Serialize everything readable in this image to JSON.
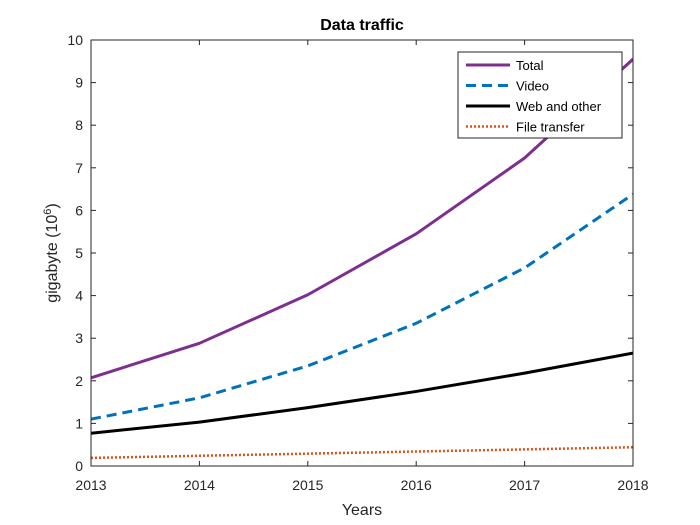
{
  "chart_data": {
    "type": "line",
    "title": "Data traffic",
    "xlabel": "Years",
    "ylabel_base": "gigabyte (10",
    "ylabel_exp": "6",
    "ylabel_close": ")",
    "xlim": [
      2013,
      2018
    ],
    "ylim": [
      0,
      10
    ],
    "x": [
      2013,
      2014,
      2015,
      2016,
      2017,
      2018
    ],
    "x_tick_labels": [
      "2013",
      "2014",
      "2015",
      "2016",
      "2017",
      "2018"
    ],
    "y_ticks": [
      0,
      1,
      2,
      3,
      4,
      5,
      6,
      7,
      8,
      9,
      10
    ],
    "y_tick_labels": [
      "0",
      "1",
      "2",
      "3",
      "4",
      "5",
      "6",
      "7",
      "8",
      "9",
      "10"
    ],
    "grid": false,
    "legend_position": "top-right",
    "series": [
      {
        "name": "Total",
        "values": [
          2.07,
          2.88,
          4.02,
          5.45,
          7.23,
          9.55
        ],
        "color": "#7E2F8E",
        "style": "solid"
      },
      {
        "name": "Video",
        "values": [
          1.1,
          1.6,
          2.35,
          3.35,
          4.65,
          6.38
        ],
        "color": "#0072BD",
        "style": "dashed"
      },
      {
        "name": "Web and other",
        "values": [
          0.77,
          1.03,
          1.37,
          1.75,
          2.18,
          2.65
        ],
        "color": "#000000",
        "style": "solid"
      },
      {
        "name": "File transfer",
        "values": [
          0.19,
          0.24,
          0.29,
          0.34,
          0.39,
          0.44
        ],
        "color": "#D95319",
        "style": "dotted"
      }
    ]
  }
}
